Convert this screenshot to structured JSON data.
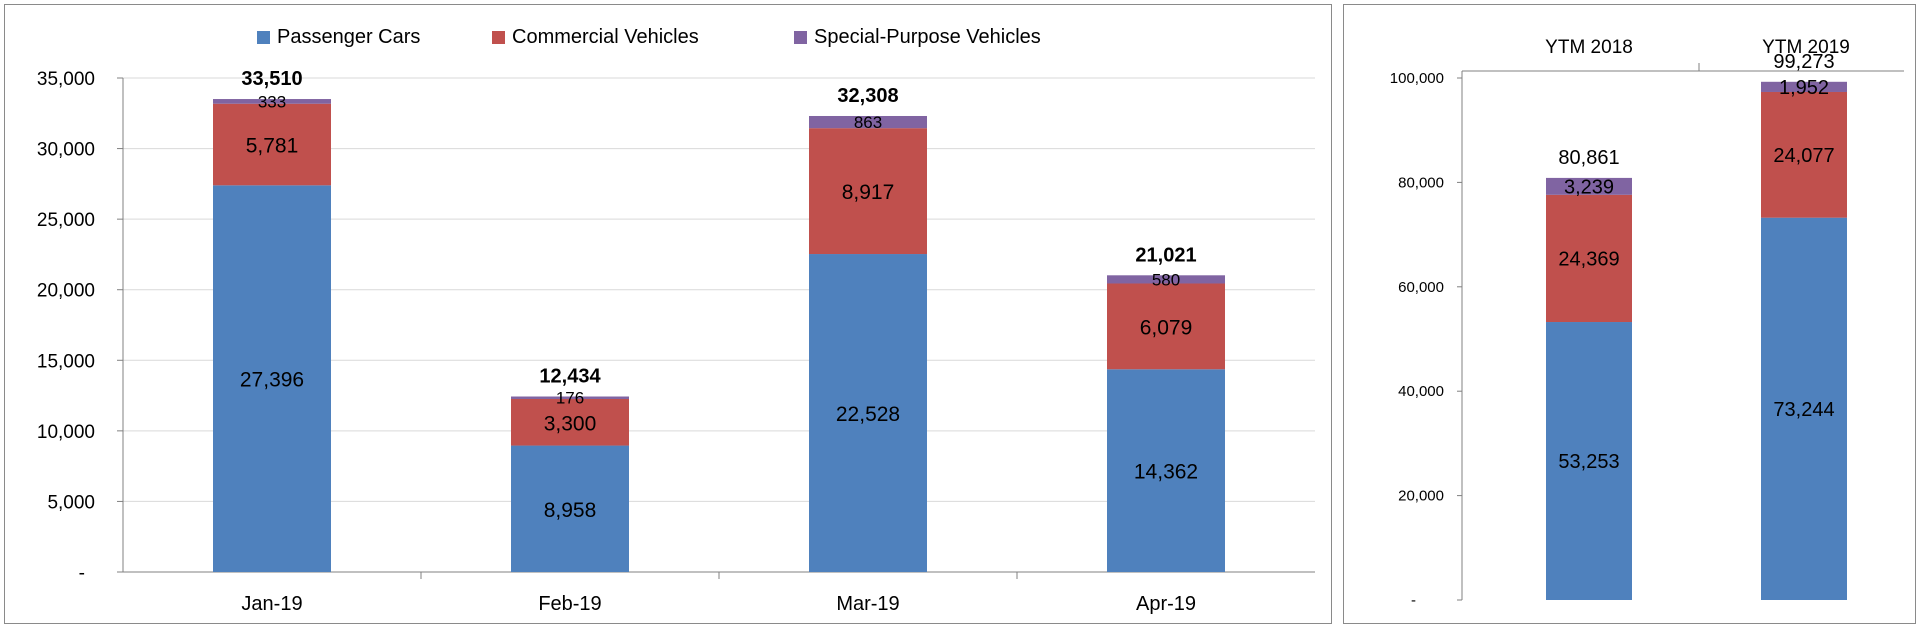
{
  "colors": {
    "passenger": "#4f81bd",
    "commercial": "#c0504d",
    "special": "#8064a2",
    "grid": "#d9d9d9",
    "axis": "#808080",
    "text": "#000000"
  },
  "chart_data": [
    {
      "type": "bar",
      "stacked": true,
      "categories": [
        "Jan-19",
        "Feb-19",
        "Mar-19",
        "Apr-19"
      ],
      "series": [
        {
          "name": "Passenger Cars",
          "values": [
            27396,
            8958,
            22528,
            14362
          ]
        },
        {
          "name": "Commercial Vehicles",
          "values": [
            5781,
            3300,
            8917,
            6079
          ]
        },
        {
          "name": "Special-Purpose Vehicles",
          "values": [
            333,
            176,
            863,
            580
          ]
        }
      ],
      "totals": [
        33510,
        12434,
        32308,
        21021
      ],
      "value_labels": [
        [
          "27,396",
          "5,781",
          "333"
        ],
        [
          "8,958",
          "3,300",
          "176"
        ],
        [
          "22,528",
          "8,917",
          "863"
        ],
        [
          "14,362",
          "6,079",
          "580"
        ]
      ],
      "total_labels": [
        "33,510",
        "12,434",
        "32,308",
        "21,021"
      ],
      "ylim": [
        0,
        35000
      ],
      "ytick_labels": [
        "-",
        "5,000",
        "10,000",
        "15,000",
        "20,000",
        "25,000",
        "30,000",
        "35,000"
      ],
      "legend_position": "top",
      "grid": true
    },
    {
      "type": "bar",
      "stacked": true,
      "categories": [
        "YTM 2018",
        "YTM 2019"
      ],
      "series": [
        {
          "name": "Passenger Cars",
          "values": [
            53253,
            73244
          ]
        },
        {
          "name": "Commercial Vehicles",
          "values": [
            24369,
            24077
          ]
        },
        {
          "name": "Special-Purpose Vehicles",
          "values": [
            3239,
            1952
          ]
        }
      ],
      "totals": [
        80861,
        99273
      ],
      "value_labels": [
        [
          "53,253",
          "24,369",
          "3,239"
        ],
        [
          "73,244",
          "24,077",
          "1,952"
        ]
      ],
      "total_labels": [
        "80,861",
        "99,273"
      ],
      "ylim": [
        0,
        100000
      ],
      "ytick_labels": [
        "-",
        "20,000",
        "40,000",
        "60,000",
        "80,000",
        "100,000"
      ],
      "category_axis_position": "top",
      "grid": false
    }
  ]
}
